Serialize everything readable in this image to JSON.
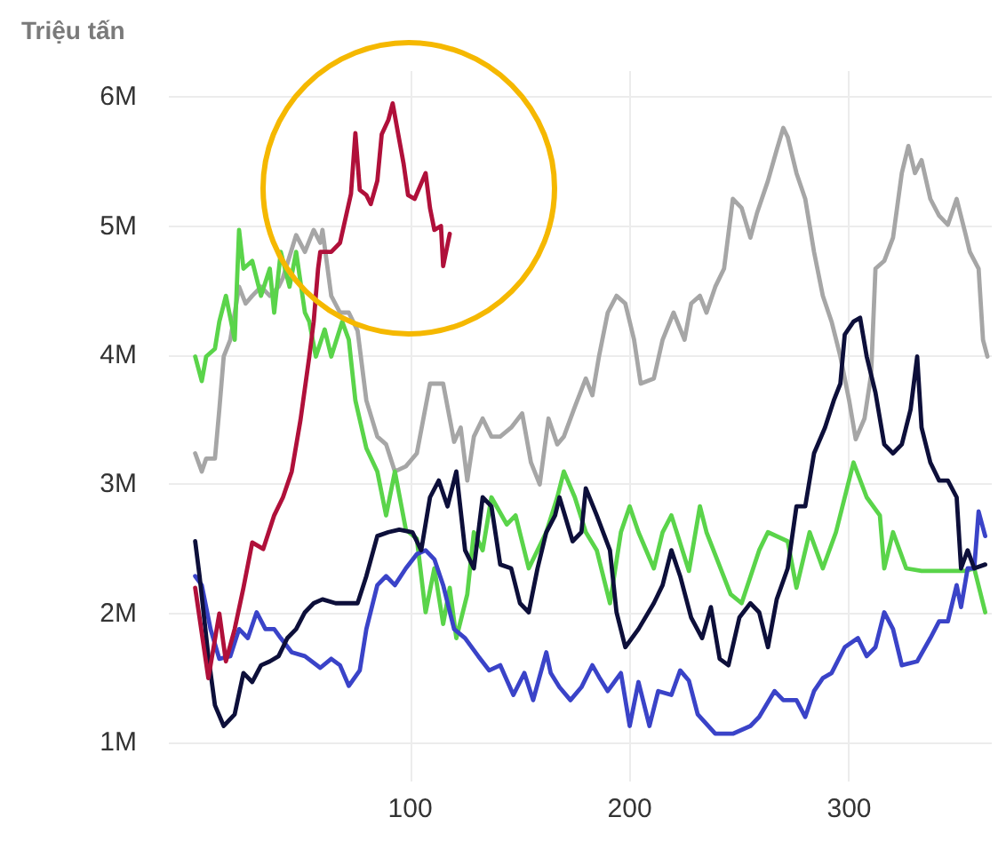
{
  "chart_data": {
    "type": "line",
    "ylabel": "Triệu tấn",
    "xlim": [
      -10,
      365
    ],
    "xticks": [
      100,
      200,
      300
    ],
    "ylim": [
      0.7,
      6.2
    ],
    "yticks": [
      {
        "value": 1,
        "label": "1M"
      },
      {
        "value": 2,
        "label": "2M"
      },
      {
        "value": 3,
        "label": "3M"
      },
      {
        "value": 4,
        "label": "4M"
      },
      {
        "value": 5,
        "label": "5M"
      },
      {
        "value": 6,
        "label": "6M"
      }
    ],
    "grid": true,
    "marker": "none",
    "line_style": "solid",
    "series": [
      {
        "color": "#a6a6a6",
        "x": [
          2,
          5,
          7,
          11,
          13,
          15,
          18,
          22,
          25,
          28,
          32,
          36,
          40,
          42,
          48,
          52,
          56,
          59,
          60,
          64,
          68,
          72,
          76,
          80,
          85,
          89,
          93,
          98,
          103,
          109,
          115,
          120,
          123,
          126,
          129,
          133,
          137,
          141,
          146,
          151,
          155,
          159,
          163,
          167,
          170,
          175,
          180,
          183,
          186,
          190,
          194,
          198,
          202,
          205,
          211,
          215,
          220,
          225,
          228,
          232,
          235,
          239,
          243,
          247,
          251,
          255,
          258,
          263,
          267,
          270,
          272,
          276,
          280,
          284,
          288,
          292,
          296,
          300,
          303,
          307,
          310,
          312,
          316,
          320,
          324,
          327,
          330,
          333,
          337,
          341,
          345,
          349,
          353,
          355,
          359,
          361,
          363
        ],
        "values": [
          3.24,
          3.1,
          3.2,
          3.2,
          3.58,
          3.99,
          4.12,
          4.53,
          4.4,
          4.46,
          4.53,
          4.46,
          4.53,
          4.6,
          4.93,
          4.8,
          4.97,
          4.87,
          4.97,
          4.46,
          4.33,
          4.33,
          4.19,
          3.65,
          3.37,
          3.31,
          3.1,
          3.14,
          3.24,
          3.78,
          3.78,
          3.33,
          3.44,
          3.03,
          3.37,
          3.51,
          3.37,
          3.37,
          3.44,
          3.55,
          3.17,
          3.0,
          3.51,
          3.31,
          3.37,
          3.6,
          3.82,
          3.69,
          3.99,
          4.33,
          4.46,
          4.4,
          4.12,
          3.78,
          3.82,
          4.12,
          4.33,
          4.12,
          4.4,
          4.46,
          4.33,
          4.53,
          4.67,
          5.21,
          5.14,
          4.91,
          5.1,
          5.35,
          5.59,
          5.76,
          5.69,
          5.41,
          5.21,
          4.8,
          4.46,
          4.26,
          3.99,
          3.65,
          3.35,
          3.51,
          3.85,
          4.67,
          4.73,
          4.91,
          5.41,
          5.62,
          5.41,
          5.51,
          5.21,
          5.08,
          5.01,
          5.21,
          4.94,
          4.8,
          4.67,
          4.12,
          3.99
        ]
      },
      {
        "color": "#5ad44a",
        "x": [
          2,
          5,
          7,
          11,
          13,
          16,
          20,
          22,
          24,
          28,
          32,
          36,
          38,
          41,
          45,
          48,
          52,
          54,
          57,
          61,
          64,
          69,
          72,
          75,
          80,
          85,
          89,
          93,
          98,
          103,
          107,
          111,
          115,
          118,
          121,
          126,
          129,
          133,
          137,
          144,
          148,
          154,
          162,
          167,
          170,
          175,
          180,
          185,
          191,
          196,
          200,
          204,
          211,
          215,
          219,
          227,
          232,
          235,
          246,
          251,
          259,
          263,
          272,
          276,
          282,
          288,
          294,
          302,
          308,
          314,
          316,
          320,
          326,
          333,
          337,
          341,
          345,
          353,
          357,
          362
        ],
        "values": [
          3.99,
          3.8,
          3.99,
          4.05,
          4.26,
          4.46,
          4.12,
          4.97,
          4.67,
          4.73,
          4.46,
          4.67,
          4.33,
          4.8,
          4.53,
          4.8,
          4.33,
          4.26,
          3.99,
          4.2,
          3.99,
          4.26,
          4.12,
          3.65,
          3.28,
          3.1,
          2.76,
          3.1,
          2.65,
          2.58,
          2.01,
          2.35,
          1.92,
          2.2,
          1.81,
          2.15,
          2.63,
          2.49,
          2.9,
          2.69,
          2.76,
          2.35,
          2.63,
          2.9,
          3.1,
          2.9,
          2.63,
          2.49,
          2.08,
          2.63,
          2.83,
          2.63,
          2.35,
          2.63,
          2.76,
          2.33,
          2.83,
          2.63,
          2.15,
          2.08,
          2.49,
          2.63,
          2.56,
          2.2,
          2.63,
          2.35,
          2.63,
          3.17,
          2.9,
          2.76,
          2.35,
          2.63,
          2.35,
          2.33,
          2.33,
          2.33,
          2.33,
          2.33,
          2.35,
          2.01
        ]
      },
      {
        "color": "#3a43c8",
        "x": [
          2,
          5,
          9,
          13,
          18,
          22,
          26,
          30,
          34,
          38,
          41,
          46,
          52,
          59,
          64,
          68,
          72,
          77,
          80,
          85,
          89,
          93,
          98,
          103,
          107,
          111,
          115,
          120,
          125,
          131,
          136,
          141,
          147,
          152,
          156,
          162,
          164,
          168,
          173,
          178,
          183,
          186,
          190,
          196,
          200,
          204,
          209,
          213,
          219,
          223,
          227,
          231,
          239,
          247,
          255,
          259,
          266,
          270,
          276,
          280,
          284,
          288,
          292,
          298,
          304,
          308,
          312,
          316,
          320,
          324,
          331,
          337,
          341,
          345,
          349,
          351,
          354,
          357,
          359,
          362
        ],
        "values": [
          2.29,
          2.22,
          1.88,
          1.65,
          1.67,
          1.88,
          1.81,
          2.01,
          1.88,
          1.88,
          1.81,
          1.7,
          1.67,
          1.58,
          1.65,
          1.6,
          1.44,
          1.56,
          1.88,
          2.22,
          2.29,
          2.22,
          2.35,
          2.46,
          2.49,
          2.42,
          2.22,
          1.88,
          1.81,
          1.67,
          1.56,
          1.6,
          1.37,
          1.54,
          1.33,
          1.7,
          1.54,
          1.43,
          1.33,
          1.43,
          1.6,
          1.51,
          1.4,
          1.54,
          1.13,
          1.47,
          1.13,
          1.4,
          1.37,
          1.56,
          1.48,
          1.22,
          1.07,
          1.07,
          1.13,
          1.2,
          1.4,
          1.33,
          1.33,
          1.2,
          1.4,
          1.5,
          1.54,
          1.74,
          1.81,
          1.67,
          1.74,
          2.01,
          1.88,
          1.6,
          1.63,
          1.81,
          1.94,
          1.94,
          2.22,
          2.05,
          2.35,
          2.35,
          2.79,
          2.6
        ]
      },
      {
        "color": "#0d0f3a",
        "x": [
          2,
          4,
          8,
          11,
          15,
          20,
          24,
          28,
          32,
          36,
          40,
          44,
          48,
          52,
          56,
          60,
          66,
          71,
          76,
          80,
          85,
          90,
          95,
          101,
          105,
          109,
          113,
          117,
          121,
          125,
          129,
          133,
          137,
          141,
          146,
          150,
          154,
          158,
          162,
          166,
          168,
          174,
          178,
          180,
          185,
          191,
          194,
          198,
          204,
          211,
          215,
          219,
          223,
          228,
          233,
          237,
          241,
          245,
          250,
          255,
          259,
          263,
          267,
          272,
          276,
          280,
          284,
          289,
          293,
          296,
          298,
          302,
          305,
          308,
          312,
          316,
          320,
          324,
          328,
          331,
          333,
          337,
          341,
          345,
          349,
          351,
          354,
          357,
          362
        ],
        "values": [
          2.56,
          2.29,
          1.67,
          1.29,
          1.13,
          1.22,
          1.54,
          1.47,
          1.6,
          1.63,
          1.67,
          1.81,
          1.88,
          2.01,
          2.08,
          2.11,
          2.08,
          2.08,
          2.08,
          2.29,
          2.6,
          2.63,
          2.65,
          2.63,
          2.49,
          2.9,
          3.03,
          2.83,
          3.1,
          2.49,
          2.35,
          2.9,
          2.83,
          2.38,
          2.35,
          2.08,
          2.01,
          2.35,
          2.63,
          2.76,
          2.9,
          2.56,
          2.63,
          2.97,
          2.76,
          2.49,
          2.01,
          1.74,
          1.88,
          2.08,
          2.22,
          2.49,
          2.29,
          1.97,
          1.81,
          2.05,
          1.65,
          1.6,
          1.97,
          2.08,
          2.01,
          1.74,
          2.11,
          2.35,
          2.83,
          2.83,
          3.24,
          3.44,
          3.65,
          3.78,
          4.16,
          4.26,
          4.29,
          3.99,
          3.71,
          3.31,
          3.24,
          3.31,
          3.58,
          3.99,
          3.44,
          3.17,
          3.03,
          3.03,
          2.9,
          2.35,
          2.49,
          2.35,
          2.38
        ]
      },
      {
        "color": "#b0103a",
        "x": [
          2,
          8,
          13,
          16,
          20,
          24,
          28,
          33,
          38,
          42,
          46,
          50,
          54,
          56,
          58,
          59,
          64,
          68,
          73,
          75,
          77,
          80,
          82,
          85,
          87,
          90,
          92,
          94,
          97,
          99,
          102,
          107,
          109,
          111,
          114,
          115,
          118
        ],
        "values": [
          2.2,
          1.5,
          2.0,
          1.63,
          1.88,
          2.2,
          2.55,
          2.5,
          2.76,
          2.9,
          3.1,
          3.5,
          3.99,
          4.26,
          4.67,
          4.8,
          4.8,
          4.87,
          5.25,
          5.72,
          5.28,
          5.24,
          5.17,
          5.35,
          5.71,
          5.82,
          5.95,
          5.76,
          5.48,
          5.24,
          5.21,
          5.41,
          5.14,
          4.97,
          5.0,
          4.69,
          4.94
        ]
      }
    ]
  }
}
